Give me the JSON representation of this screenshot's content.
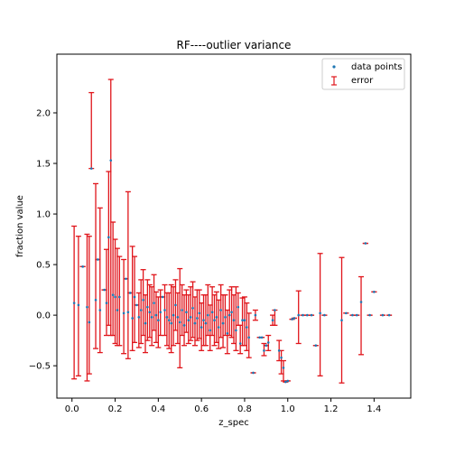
{
  "chart_data": {
    "type": "scatter",
    "title": "RF----outlier variance",
    "xlabel": "z_spec",
    "ylabel": "fraction value",
    "xlim": [
      -0.07,
      1.57
    ],
    "ylim": [
      -0.82,
      2.58
    ],
    "xticks": [
      0.0,
      0.2,
      0.4,
      0.6,
      0.8,
      1.0,
      1.2,
      1.4
    ],
    "xtick_labels": [
      "0.0",
      "0.2",
      "0.4",
      "0.6",
      "0.8",
      "1.0",
      "1.2",
      "1.4"
    ],
    "yticks": [
      -0.5,
      0.0,
      0.5,
      1.0,
      1.5,
      2.0
    ],
    "ytick_labels": [
      "−0.5",
      "0.0",
      "0.5",
      "1.0",
      "1.5",
      "2.0"
    ],
    "legend_position": "top-right",
    "series": [
      {
        "name": "data points",
        "kind": "points",
        "color": "#1f77b4",
        "x": [
          0.01,
          0.03,
          0.05,
          0.07,
          0.08,
          0.09,
          0.11,
          0.12,
          0.13,
          0.15,
          0.16,
          0.17,
          0.18,
          0.19,
          0.2,
          0.21,
          0.22,
          0.24,
          0.25,
          0.26,
          0.27,
          0.28,
          0.29,
          0.3,
          0.31,
          0.32,
          0.33,
          0.34,
          0.35,
          0.36,
          0.37,
          0.38,
          0.39,
          0.4,
          0.41,
          0.42,
          0.43,
          0.44,
          0.45,
          0.46,
          0.47,
          0.48,
          0.49,
          0.5,
          0.51,
          0.52,
          0.53,
          0.54,
          0.55,
          0.56,
          0.57,
          0.58,
          0.59,
          0.6,
          0.61,
          0.62,
          0.63,
          0.64,
          0.65,
          0.66,
          0.67,
          0.68,
          0.69,
          0.7,
          0.71,
          0.72,
          0.73,
          0.74,
          0.75,
          0.76,
          0.77,
          0.78,
          0.79,
          0.8,
          0.81,
          0.82,
          0.84,
          0.85,
          0.87,
          0.88,
          0.89,
          0.9,
          0.91,
          0.93,
          0.94,
          0.96,
          0.97,
          0.98,
          0.99,
          1.0,
          1.02,
          1.03,
          1.05,
          1.07,
          1.09,
          1.11,
          1.13,
          1.15,
          1.17,
          1.25,
          1.27,
          1.3,
          1.32,
          1.34,
          1.36,
          1.38,
          1.4,
          1.44,
          1.47
        ],
        "y": [
          0.12,
          0.1,
          0.48,
          0.08,
          -0.07,
          1.45,
          0.15,
          0.55,
          0.05,
          0.25,
          0.12,
          0.77,
          1.53,
          0.2,
          0.18,
          0.05,
          0.18,
          0.02,
          0.36,
          0.03,
          0.22,
          -0.03,
          0.18,
          0.1,
          -0.02,
          0.05,
          0.15,
          -0.08,
          0.08,
          0.03,
          -0.02,
          0.12,
          0.0,
          -0.05,
          0.03,
          0.18,
          0.05,
          -0.02,
          -0.05,
          -0.08,
          0.0,
          0.1,
          -0.02,
          -0.07,
          0.05,
          -0.1,
          0.03,
          -0.05,
          -0.02,
          0.07,
          -0.08,
          -0.03,
          0.02,
          -0.12,
          -0.05,
          -0.08,
          0.0,
          -0.15,
          0.03,
          -0.05,
          -0.02,
          -0.12,
          0.05,
          -0.08,
          -0.02,
          -0.18,
          0.0,
          0.03,
          -0.05,
          -0.15,
          0.08,
          -0.28,
          -0.05,
          -0.05,
          -0.12,
          -0.22,
          -0.57,
          0.0,
          -0.22,
          -0.22,
          -0.35,
          -0.3,
          -0.27,
          -0.05,
          0.05,
          -0.35,
          -0.42,
          -0.52,
          -0.66,
          -0.65,
          -0.04,
          -0.03,
          0.0,
          0.0,
          0.0,
          0.0,
          -0.3,
          0.02,
          0.0,
          -0.05,
          0.02,
          0.0,
          0.0,
          0.13,
          0.71,
          0.0,
          0.23,
          0.0,
          0.0
        ]
      },
      {
        "name": "error",
        "kind": "errorbars",
        "color": "#e0151b",
        "lower": [
          -0.63,
          -0.6,
          0.48,
          -0.65,
          -0.58,
          1.45,
          -0.33,
          0.55,
          -0.37,
          0.25,
          -0.2,
          -0.1,
          -0.2,
          -0.2,
          -0.28,
          -0.3,
          -0.3,
          -0.38,
          0.36,
          -0.43,
          0.22,
          -0.35,
          -0.27,
          0.1,
          -0.32,
          -0.28,
          -0.2,
          -0.37,
          -0.25,
          -0.22,
          -0.3,
          -0.15,
          -0.27,
          -0.32,
          -0.2,
          0.18,
          -0.2,
          -0.3,
          -0.33,
          -0.37,
          -0.3,
          -0.15,
          -0.28,
          -0.52,
          -0.2,
          -0.3,
          -0.17,
          -0.28,
          -0.25,
          -0.22,
          -0.3,
          -0.25,
          -0.23,
          -0.35,
          -0.3,
          -0.3,
          -0.2,
          -0.35,
          -0.2,
          -0.3,
          -0.27,
          -0.33,
          -0.22,
          -0.32,
          -0.2,
          -0.38,
          -0.2,
          -0.22,
          -0.28,
          -0.35,
          -0.1,
          -0.38,
          -0.3,
          -0.3,
          -0.35,
          -0.42,
          -0.57,
          -0.05,
          -0.22,
          -0.22,
          -0.4,
          -0.3,
          -0.35,
          -0.1,
          -0.1,
          -0.45,
          -0.58,
          -0.65,
          -0.66,
          -0.65,
          -0.04,
          -0.03,
          -0.28,
          0.0,
          0.0,
          0.0,
          -0.3,
          -0.6,
          0.0,
          -0.67,
          0.02,
          0.0,
          0.0,
          -0.39,
          0.71,
          0.0,
          0.23,
          0.0,
          0.0
        ],
        "upper": [
          0.88,
          0.78,
          0.48,
          0.8,
          0.78,
          2.2,
          1.3,
          0.55,
          1.06,
          0.25,
          0.65,
          1.42,
          2.33,
          0.92,
          0.75,
          0.66,
          0.58,
          0.55,
          0.36,
          1.22,
          0.22,
          0.68,
          0.58,
          0.1,
          0.22,
          0.35,
          0.45,
          0.2,
          0.35,
          0.3,
          0.28,
          0.4,
          0.23,
          0.18,
          0.25,
          0.18,
          0.3,
          0.22,
          0.22,
          0.3,
          0.28,
          0.35,
          0.22,
          0.46,
          0.3,
          0.2,
          0.25,
          0.2,
          0.28,
          0.33,
          0.18,
          0.25,
          0.25,
          0.12,
          0.2,
          0.2,
          0.3,
          0.1,
          0.28,
          0.2,
          0.23,
          0.15,
          0.3,
          0.2,
          0.2,
          0.05,
          0.25,
          0.28,
          0.2,
          0.28,
          0.22,
          -0.1,
          0.17,
          0.18,
          0.12,
          0.02,
          -0.57,
          0.05,
          -0.22,
          -0.22,
          -0.28,
          -0.3,
          -0.2,
          0.0,
          0.05,
          -0.25,
          -0.35,
          -0.45,
          -0.66,
          -0.65,
          -0.04,
          -0.03,
          0.24,
          0.0,
          0.0,
          0.0,
          -0.3,
          0.61,
          0.0,
          0.57,
          0.02,
          0.0,
          0.0,
          0.38,
          0.71,
          0.0,
          0.23,
          0.0,
          0.0
        ]
      }
    ]
  }
}
